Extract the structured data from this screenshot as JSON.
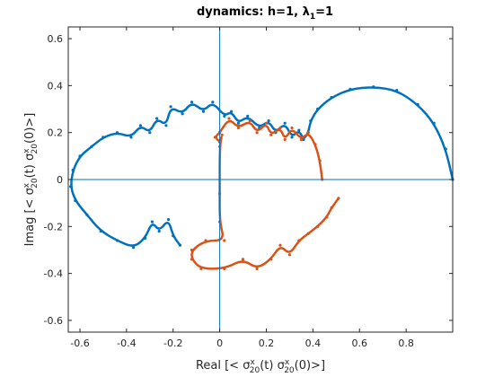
{
  "chart_data": {
    "type": "line",
    "title": "dynamics:  h=1, λ",
    "title_sub": "1",
    "title_tail": "=1",
    "xlabel": "Real [< σ",
    "ylabel": "Imag [< σ",
    "xlim": [
      -0.65,
      1.0
    ],
    "ylim": [
      -0.65,
      0.65
    ],
    "x_ticks": [
      -0.6,
      -0.4,
      -0.2,
      0,
      0.2,
      0.4,
      0.6,
      0.8
    ],
    "x_tick_labels": [
      "-0.6",
      "-0.4",
      "-0.2",
      "0",
      "0.2",
      "0.4",
      "0.6",
      "0.8"
    ],
    "y_ticks": [
      -0.6,
      -0.4,
      -0.2,
      0,
      0.2,
      0.4,
      0.6
    ],
    "y_tick_labels": [
      "-0.6",
      "-0.4",
      "-0.2",
      "0",
      "0.2",
      "0.4",
      "0.6"
    ],
    "grid": false,
    "colors": {
      "blue": "#0072BD",
      "orange": "#D95319",
      "axes": "#262626",
      "zero_lines": "#0072BD"
    },
    "series": [
      {
        "color": "#0072BD",
        "points": [
          [
            1.0,
            0.0
          ],
          [
            0.97,
            0.13
          ],
          [
            0.92,
            0.24
          ],
          [
            0.85,
            0.32
          ],
          [
            0.76,
            0.38
          ],
          [
            0.66,
            0.395
          ],
          [
            0.56,
            0.385
          ],
          [
            0.48,
            0.35
          ],
          [
            0.42,
            0.3
          ],
          [
            0.39,
            0.25
          ],
          [
            0.38,
            0.2
          ],
          [
            0.36,
            0.17
          ],
          [
            0.34,
            0.21
          ],
          [
            0.31,
            0.18
          ],
          [
            0.28,
            0.24
          ],
          [
            0.24,
            0.2
          ],
          [
            0.21,
            0.25
          ],
          [
            0.17,
            0.22
          ],
          [
            0.12,
            0.27
          ],
          [
            0.08,
            0.24
          ],
          [
            0.05,
            0.29
          ],
          [
            0.02,
            0.27
          ],
          [
            -0.03,
            0.33
          ],
          [
            -0.07,
            0.29
          ],
          [
            -0.12,
            0.33
          ],
          [
            -0.16,
            0.28
          ],
          [
            -0.21,
            0.31
          ],
          [
            -0.23,
            0.23
          ],
          [
            -0.27,
            0.26
          ],
          [
            -0.3,
            0.2
          ],
          [
            -0.34,
            0.23
          ],
          [
            -0.38,
            0.18
          ],
          [
            -0.44,
            0.2
          ],
          [
            -0.5,
            0.18
          ],
          [
            -0.55,
            0.14
          ],
          [
            -0.6,
            0.1
          ],
          [
            -0.63,
            0.04
          ],
          [
            -0.64,
            -0.03
          ],
          [
            -0.62,
            -0.09
          ],
          [
            -0.57,
            -0.15
          ],
          [
            -0.51,
            -0.22
          ],
          [
            -0.44,
            -0.26
          ],
          [
            -0.37,
            -0.29
          ],
          [
            -0.32,
            -0.25
          ],
          [
            -0.29,
            -0.18
          ],
          [
            -0.26,
            -0.22
          ],
          [
            -0.22,
            -0.17
          ],
          [
            -0.2,
            -0.24
          ],
          [
            -0.17,
            -0.28
          ]
        ]
      },
      {
        "color": "#D95319",
        "points": [
          [
            0.44,
            0.0
          ],
          [
            0.43,
            0.08
          ],
          [
            0.41,
            0.15
          ],
          [
            0.38,
            0.2
          ],
          [
            0.35,
            0.17
          ],
          [
            0.31,
            0.22
          ],
          [
            0.28,
            0.17
          ],
          [
            0.26,
            0.22
          ],
          [
            0.22,
            0.19
          ],
          [
            0.2,
            0.24
          ],
          [
            0.16,
            0.2
          ],
          [
            0.13,
            0.25
          ],
          [
            0.08,
            0.22
          ],
          [
            0.04,
            0.26
          ],
          [
            0.0,
            0.2
          ],
          [
            -0.02,
            0.18
          ],
          [
            0.0,
            0.16
          ],
          [
            0.01,
            0.19
          ],
          [
            0.0,
            0.14
          ],
          [
            0.0,
            -0.06
          ],
          [
            0.0,
            -0.18
          ],
          [
            0.02,
            -0.26
          ],
          [
            -0.06,
            -0.26
          ],
          [
            -0.12,
            -0.3
          ],
          [
            -0.12,
            -0.34
          ],
          [
            -0.08,
            -0.38
          ],
          [
            0.02,
            -0.38
          ],
          [
            0.1,
            -0.34
          ],
          [
            0.16,
            -0.38
          ],
          [
            0.22,
            -0.34
          ],
          [
            0.26,
            -0.28
          ],
          [
            0.3,
            -0.32
          ],
          [
            0.34,
            -0.26
          ],
          [
            0.38,
            -0.23
          ],
          [
            0.42,
            -0.2
          ],
          [
            0.46,
            -0.16
          ],
          [
            0.48,
            -0.12
          ],
          [
            0.51,
            -0.08
          ]
        ]
      }
    ]
  }
}
